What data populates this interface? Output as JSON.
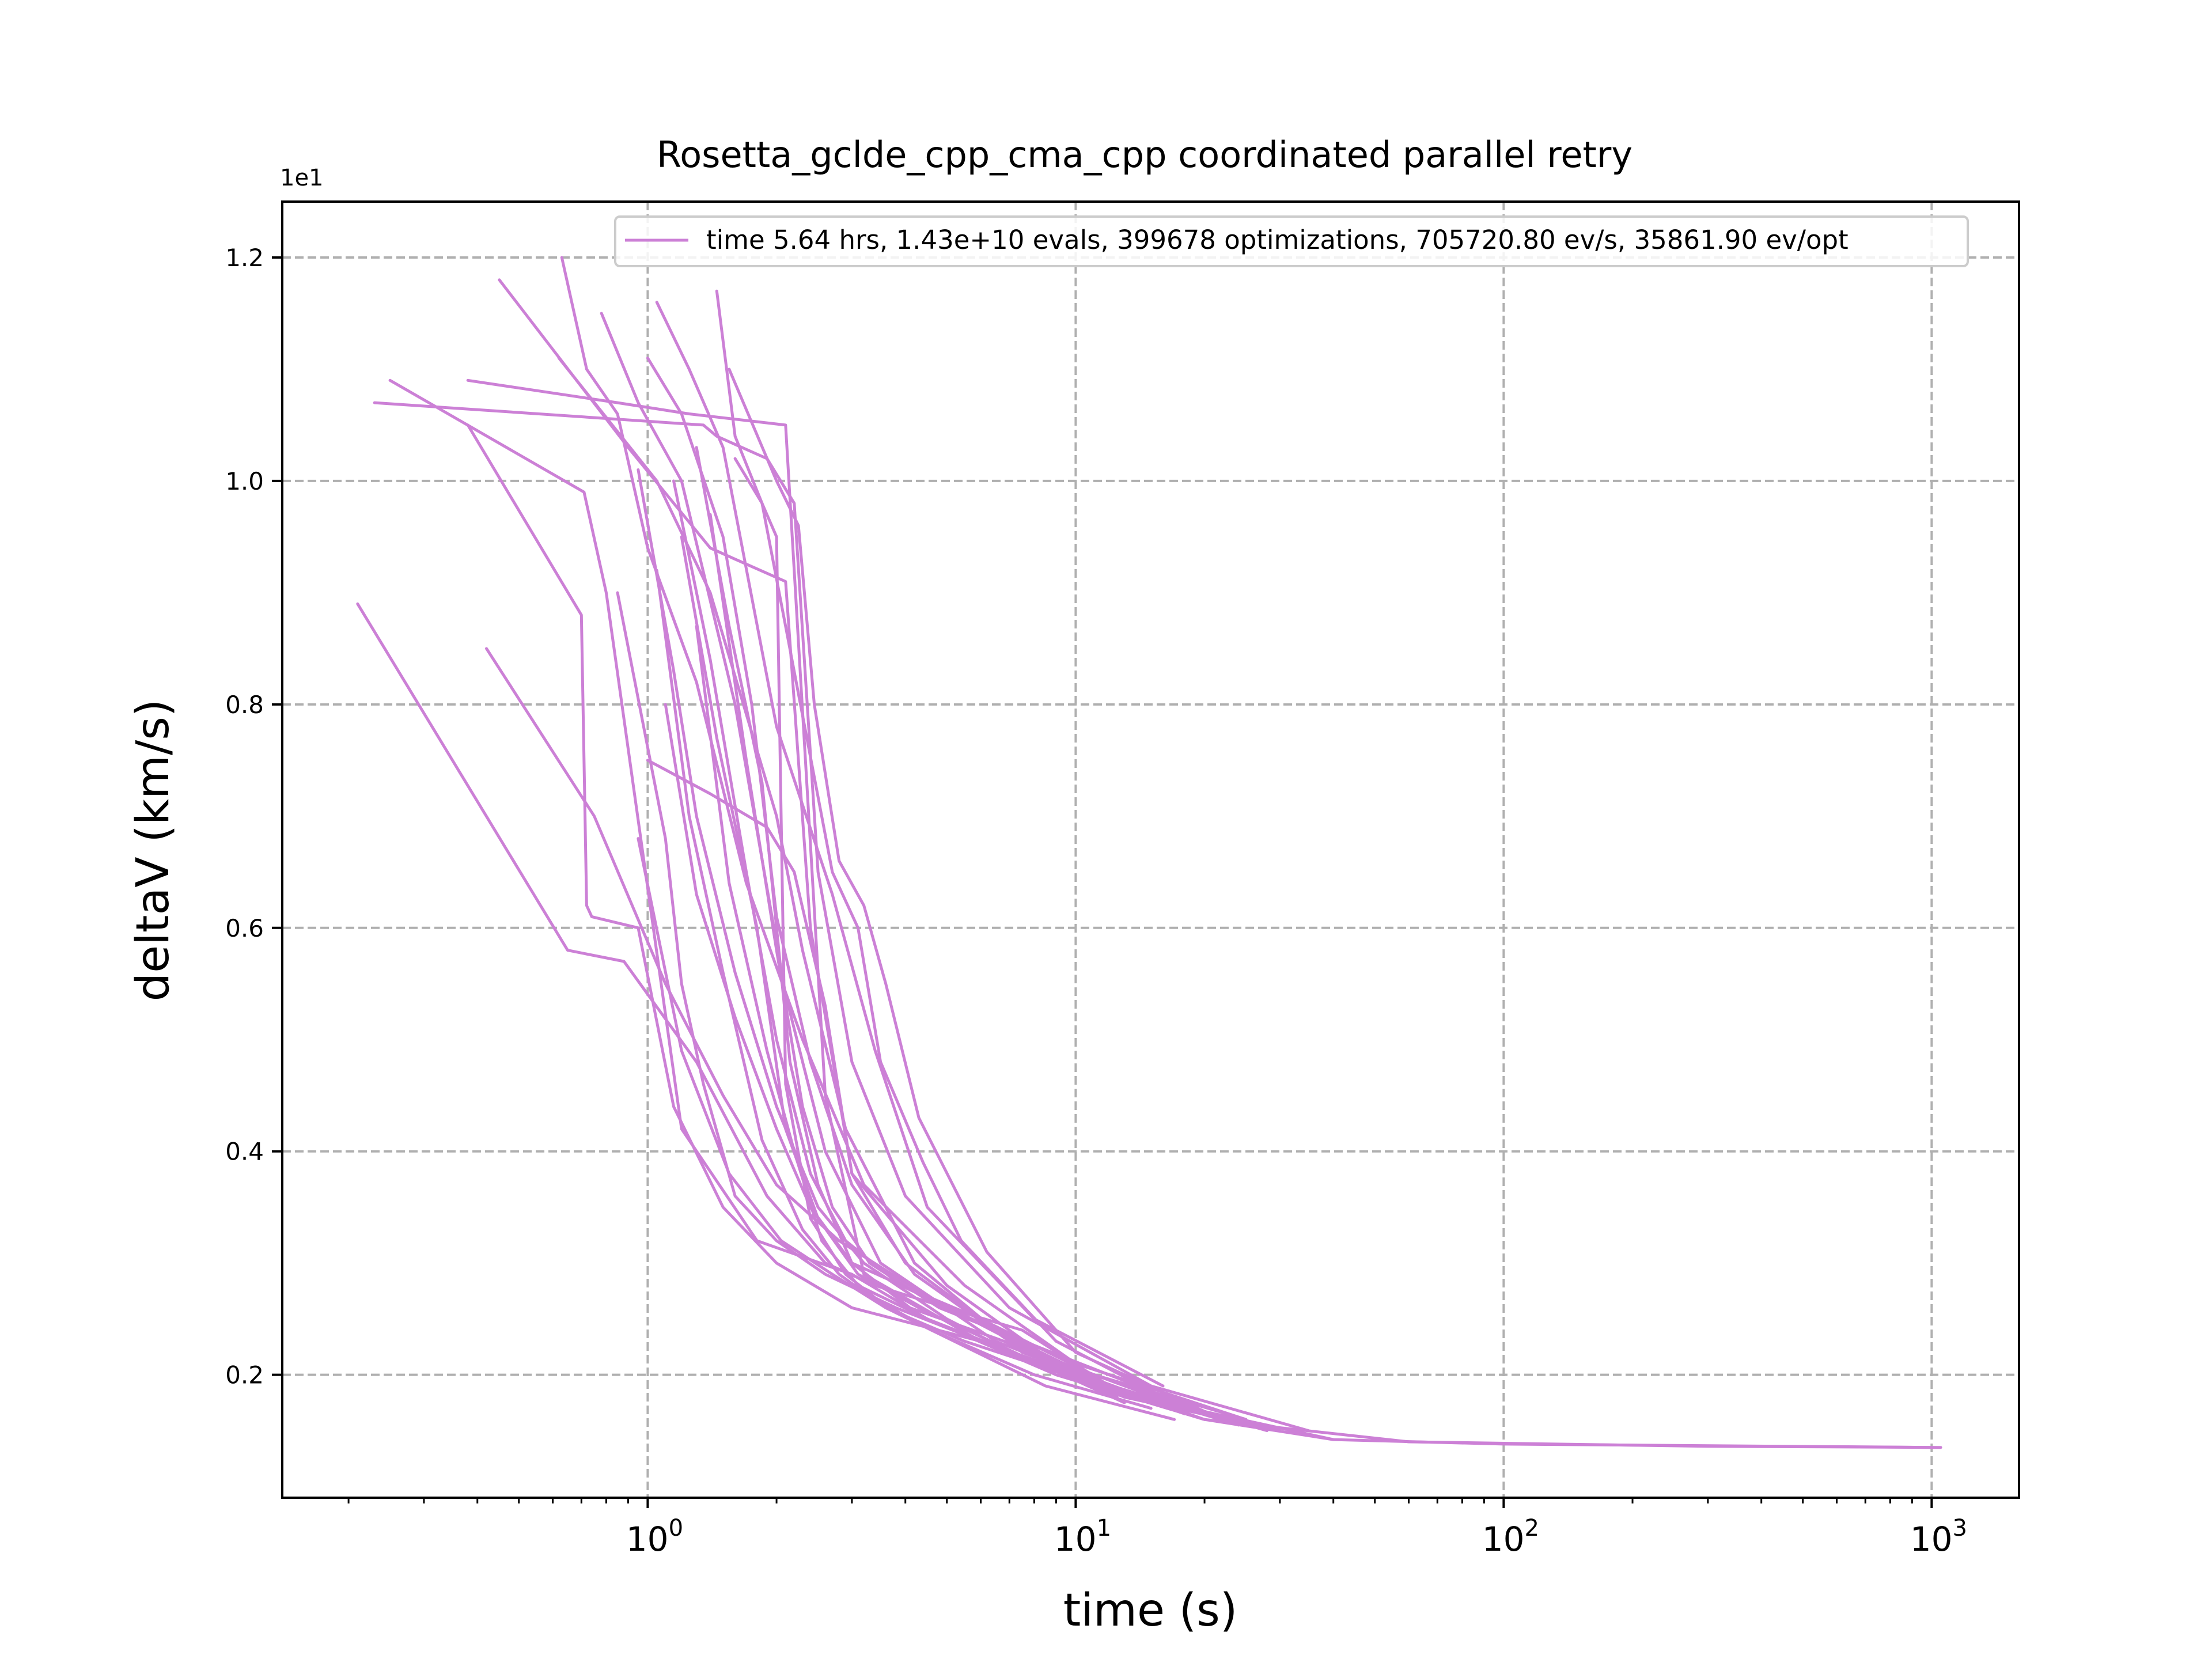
{
  "chart_data": {
    "type": "line",
    "title": "Rosetta_gclde_cpp_cma_cpp coordinated parallel retry",
    "xlabel": "time (s)",
    "ylabel": "deltaV (km/s)",
    "y_scale_label": "1e1",
    "x_scale": "log",
    "xlim": [
      0.14,
      1600
    ],
    "ylim": [
      0.9,
      12.5
    ],
    "x_major_ticks": [
      1,
      10,
      100,
      1000
    ],
    "x_tick_labels": [
      {
        "base": "10",
        "exp": "0"
      },
      {
        "base": "10",
        "exp": "1"
      },
      {
        "base": "10",
        "exp": "2"
      },
      {
        "base": "10",
        "exp": "3"
      }
    ],
    "y_ticks": [
      2,
      4,
      6,
      8,
      10,
      12
    ],
    "y_tick_labels": [
      "0.2",
      "0.4",
      "0.6",
      "0.8",
      "1.0",
      "1.2"
    ],
    "grid": true,
    "line_color": "#cc80d6",
    "legend": {
      "position": "top-right",
      "label": "time 5.64 hrs, 1.43e+10 evals, 399678 optimizations, 705720.80 ev/s, 35861.90 ev/opt"
    },
    "series": [
      {
        "x": [
          0.21,
          0.65,
          0.88,
          1.3,
          1.9,
          2.6,
          3.4,
          5.0,
          7.5,
          12,
          20,
          40,
          100,
          1000
        ],
        "y": [
          8.9,
          5.8,
          5.7,
          4.8,
          3.6,
          3.0,
          2.8,
          2.6,
          2.4,
          1.9,
          1.6,
          1.42,
          1.38,
          1.35
        ]
      },
      {
        "x": [
          0.25,
          0.71,
          0.8,
          1.2,
          1.8,
          3.0,
          4.5,
          9,
          20,
          60,
          300,
          1050
        ],
        "y": [
          10.9,
          9.9,
          9.0,
          4.2,
          3.2,
          2.9,
          2.5,
          2.0,
          1.6,
          1.4,
          1.36,
          1.35
        ]
      },
      {
        "x": [
          0.23,
          1.35,
          1.45,
          1.9,
          2.2,
          2.5,
          3.0,
          4.0,
          7,
          15,
          35
        ],
        "y": [
          10.7,
          10.5,
          10.4,
          10.2,
          9.8,
          6.5,
          4.8,
          3.6,
          2.6,
          1.9,
          1.5
        ]
      },
      {
        "x": [
          0.38,
          0.85,
          1.25,
          2.1,
          2.6,
          3.2,
          6,
          14,
          40
        ],
        "y": [
          10.9,
          10.7,
          10.6,
          10.5,
          4.5,
          2.9,
          2.3,
          1.8,
          1.42
        ]
      },
      {
        "x": [
          0.45,
          0.9,
          1.4,
          1.6,
          2.1,
          2.4,
          3.0,
          5,
          9,
          25
        ],
        "y": [
          11.8,
          10.3,
          9.4,
          9.3,
          9.1,
          6.0,
          3.8,
          2.8,
          2.1,
          1.6
        ]
      },
      {
        "x": [
          0.42,
          0.75,
          1.1,
          1.5,
          2.0,
          2.8,
          4.5,
          8,
          18
        ],
        "y": [
          8.5,
          7.0,
          5.5,
          4.5,
          3.7,
          3.2,
          2.7,
          2.2,
          1.7
        ]
      },
      {
        "x": [
          0.38,
          0.7,
          0.72,
          0.74,
          0.95,
          1.15,
          1.5,
          2.0,
          3,
          6,
          13,
          30
        ],
        "y": [
          10.5,
          8.8,
          6.2,
          6.1,
          6.0,
          4.4,
          3.5,
          3.0,
          2.6,
          2.3,
          1.8,
          1.5
        ]
      },
      {
        "x": [
          0.63,
          0.72,
          0.85,
          1.0,
          1.3,
          1.7,
          2.3,
          3.2,
          5.5,
          10,
          25
        ],
        "y": [
          12.0,
          11.0,
          10.6,
          9.4,
          8.2,
          6.4,
          5.0,
          3.7,
          2.8,
          2.1,
          1.6
        ]
      },
      {
        "x": [
          0.62,
          1.05,
          1.4,
          2.0,
          2.3,
          2.9,
          4.2,
          7.5,
          17
        ],
        "y": [
          11.1,
          10.0,
          9.0,
          7.0,
          5.8,
          4.2,
          3.0,
          2.2,
          1.7
        ]
      },
      {
        "x": [
          0.78,
          0.95,
          1.2,
          1.6,
          2.1,
          2.6,
          3.5,
          6.5,
          14
        ],
        "y": [
          11.5,
          10.7,
          10.0,
          8.0,
          5.4,
          4.0,
          3.0,
          2.3,
          1.8
        ]
      },
      {
        "x": [
          1.0,
          1.2,
          1.5,
          1.75,
          2.0,
          2.4,
          3.0,
          4.2,
          7,
          13,
          30
        ],
        "y": [
          11.1,
          10.6,
          9.5,
          8.0,
          6.1,
          4.8,
          3.7,
          2.9,
          2.3,
          1.8,
          1.5
        ]
      },
      {
        "x": [
          1.05,
          1.25,
          1.5,
          2.0,
          2.7,
          3.4,
          4.5,
          8,
          16
        ],
        "y": [
          11.6,
          11.0,
          10.3,
          7.8,
          6.3,
          4.9,
          3.5,
          2.5,
          1.9
        ]
      },
      {
        "x": [
          1.45,
          1.6,
          1.85,
          2.1,
          2.7,
          3.1,
          3.5,
          4.4,
          5.4,
          9,
          18
        ],
        "y": [
          11.7,
          10.4,
          9.8,
          8.7,
          6.5,
          6.0,
          4.8,
          3.9,
          3.2,
          2.3,
          1.7
        ]
      },
      {
        "x": [
          1.55,
          2.0,
          2.25,
          2.45,
          2.8,
          3.2,
          3.6,
          4.3,
          6.2,
          10,
          22
        ],
        "y": [
          11.0,
          10.0,
          9.6,
          8.0,
          6.6,
          6.2,
          5.5,
          4.3,
          3.1,
          2.2,
          1.6
        ]
      },
      {
        "x": [
          0.85,
          1.1,
          1.2,
          1.35,
          1.6,
          2.0,
          2.6,
          3.8,
          6,
          12,
          28
        ],
        "y": [
          9.0,
          6.8,
          5.5,
          4.6,
          3.6,
          3.2,
          2.9,
          2.6,
          2.3,
          1.9,
          1.5
        ]
      },
      {
        "x": [
          0.95,
          1.15,
          1.3,
          1.6,
          2.0,
          2.5,
          3.2,
          5,
          9,
          20
        ],
        "y": [
          10.1,
          8.3,
          7.0,
          5.6,
          4.4,
          3.5,
          3.0,
          2.5,
          2.0,
          1.6
        ]
      },
      {
        "x": [
          1.0,
          1.4,
          1.9,
          2.2,
          2.6,
          3.0,
          4.0,
          6,
          11,
          25
        ],
        "y": [
          7.5,
          7.2,
          6.9,
          6.5,
          5.3,
          3.8,
          3.0,
          2.5,
          2.0,
          1.55
        ]
      },
      {
        "x": [
          1.05,
          1.25,
          1.5,
          1.85,
          2.3,
          2.8,
          3.6,
          5.2,
          8.5,
          17
        ],
        "y": [
          9.2,
          7.0,
          5.6,
          4.1,
          3.3,
          2.9,
          2.6,
          2.3,
          1.9,
          1.6
        ]
      },
      {
        "x": [
          1.15,
          1.4,
          1.7,
          2.0,
          2.4,
          2.9,
          3.9,
          6.5,
          12,
          24
        ],
        "y": [
          10.0,
          8.4,
          6.5,
          5.0,
          3.8,
          3.2,
          2.8,
          2.4,
          1.9,
          1.55
        ]
      },
      {
        "x": [
          1.2,
          1.45,
          1.8,
          2.1,
          2.5,
          3.1,
          4.3,
          7.2,
          13
        ],
        "y": [
          9.5,
          7.7,
          6.0,
          4.2,
          3.4,
          2.9,
          2.6,
          2.2,
          1.75
        ]
      },
      {
        "x": [
          1.3,
          1.55,
          1.85,
          2.15,
          2.5,
          3.0,
          4.1,
          6.8,
          12.5
        ],
        "y": [
          10.3,
          8.7,
          7.3,
          4.8,
          3.7,
          3.0,
          2.6,
          2.3,
          1.8
        ]
      },
      {
        "x": [
          1.1,
          1.3,
          1.6,
          2.0,
          2.4,
          3.0,
          4.2,
          6,
          10,
          22
        ],
        "y": [
          8.0,
          6.3,
          5.2,
          4.2,
          3.5,
          3.0,
          2.75,
          2.5,
          2.0,
          1.6
        ]
      },
      {
        "x": [
          1.6,
          1.85,
          2.0,
          2.05,
          2.1,
          2.4,
          2.9,
          3.5,
          4.6,
          8,
          15
        ],
        "y": [
          10.2,
          9.8,
          9.5,
          7.0,
          4.6,
          3.4,
          2.9,
          2.65,
          2.4,
          2.0,
          1.7
        ]
      },
      {
        "x": [
          0.95,
          1.2,
          1.55,
          2.05,
          2.7,
          3.6,
          5.5,
          9.5,
          20
        ],
        "y": [
          6.8,
          4.9,
          3.8,
          3.2,
          2.9,
          2.6,
          2.3,
          2.0,
          1.6
        ]
      },
      {
        "x": [
          1.3,
          1.55,
          1.9,
          2.2,
          2.55,
          3.1,
          4.5,
          8.3,
          18
        ],
        "y": [
          8.7,
          6.4,
          4.9,
          4.0,
          3.2,
          2.8,
          2.5,
          2.1,
          1.65
        ]
      },
      {
        "x": [
          1.4,
          1.7,
          2.0,
          2.3,
          2.7,
          3.3,
          4.8,
          9.5,
          19
        ],
        "y": [
          9.7,
          7.5,
          5.8,
          4.4,
          3.5,
          3.0,
          2.6,
          2.15,
          1.7
        ]
      }
    ]
  }
}
